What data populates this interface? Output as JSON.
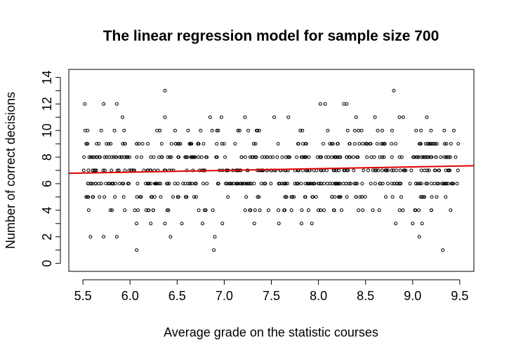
{
  "chart_data": {
    "type": "scatter",
    "title": "The linear regression model for sample size 700",
    "xlabel": "Average grade on the statistic courses",
    "ylabel": "Number of correct decisions",
    "xlim": [
      5.35,
      9.65
    ],
    "ylim": [
      -0.6,
      14.6
    ],
    "xticks": [
      5.5,
      6.0,
      6.5,
      7.0,
      7.5,
      8.0,
      8.5,
      9.0,
      9.5
    ],
    "xtick_labels": [
      "5.5",
      "6.0",
      "6.5",
      "7.0",
      "7.5",
      "8.0",
      "8.5",
      "9.0",
      "9.5"
    ],
    "yticks": [
      0,
      1,
      2,
      3,
      4,
      5,
      6,
      7,
      8,
      9,
      10,
      11,
      12,
      13,
      14
    ],
    "ytick_labels": [
      "0",
      "",
      "2",
      "",
      "4",
      "",
      "6",
      "",
      "8",
      "",
      "10",
      "",
      "12",
      "",
      "14"
    ],
    "grid": false,
    "regression_line": {
      "x": [
        5.35,
        9.65
      ],
      "y": [
        6.78,
        7.35
      ],
      "color": "#e00000"
    },
    "n_points": 700,
    "x_range": [
      5.5,
      9.5
    ],
    "y_values_integer": true,
    "points": [
      [
        5.52,
        12
      ],
      [
        5.55,
        10
      ],
      [
        5.58,
        2
      ],
      [
        5.72,
        2
      ],
      [
        5.72,
        12
      ],
      [
        5.86,
        12
      ],
      [
        5.86,
        2
      ],
      [
        5.92,
        11
      ],
      [
        6.07,
        1
      ],
      [
        6.07,
        3
      ],
      [
        6.22,
        3
      ],
      [
        6.37,
        13
      ],
      [
        6.37,
        11
      ],
      [
        6.37,
        3
      ],
      [
        6.43,
        2
      ],
      [
        6.55,
        3
      ],
      [
        6.77,
        3
      ],
      [
        6.85,
        11
      ],
      [
        6.89,
        1
      ],
      [
        6.9,
        2
      ],
      [
        6.97,
        11
      ],
      [
        6.98,
        3
      ],
      [
        7.22,
        11
      ],
      [
        7.32,
        3
      ],
      [
        7.53,
        11
      ],
      [
        7.58,
        3
      ],
      [
        7.68,
        11
      ],
      [
        7.82,
        3
      ],
      [
        7.93,
        3
      ],
      [
        8.02,
        12
      ],
      [
        8.07,
        12
      ],
      [
        8.27,
        12
      ],
      [
        8.3,
        12
      ],
      [
        8.4,
        11
      ],
      [
        8.6,
        11
      ],
      [
        8.8,
        13
      ],
      [
        8.82,
        3
      ],
      [
        8.86,
        11
      ],
      [
        8.9,
        11
      ],
      [
        9.0,
        3
      ],
      [
        9.07,
        2
      ],
      [
        9.1,
        3
      ],
      [
        9.15,
        11
      ],
      [
        9.32,
        1
      ]
    ]
  }
}
